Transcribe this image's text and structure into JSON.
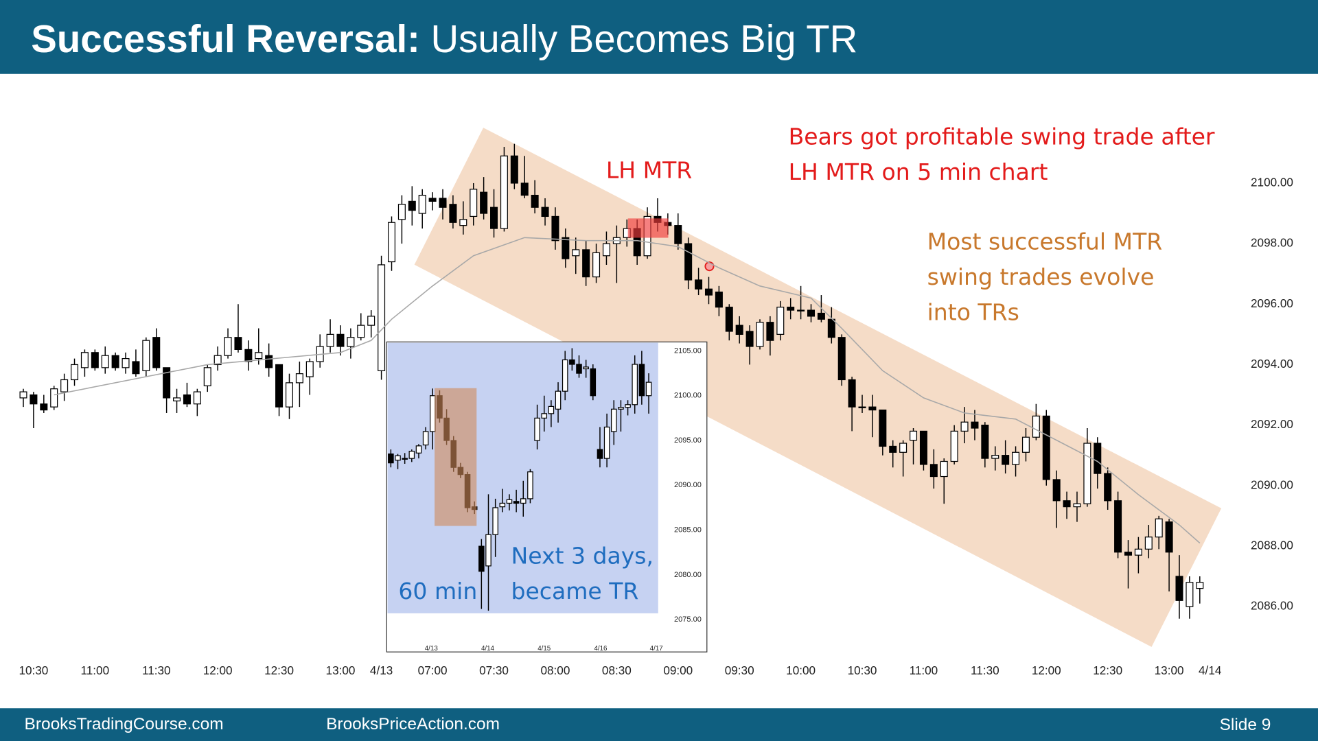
{
  "slide": {
    "title_bold": "Successful Reversal:",
    "title_rest": "Usually Becomes Big TR",
    "footer_left": "BrooksTradingCourse.com",
    "footer_mid": "BrooksPriceAction.com",
    "footer_right": "Slide 9"
  },
  "chart_data": [
    {
      "type": "candlestick",
      "up_color": "#ffffff",
      "down_color": "#000000",
      "xlim": [
        -1,
        117.5
      ],
      "ylim": [
        2084.4,
        2103.3
      ],
      "yticks": [
        {
          "value": 2086,
          "label": "2086.00"
        },
        {
          "value": 2088,
          "label": "2088.00"
        },
        {
          "value": 2090,
          "label": "2090.00"
        },
        {
          "value": 2092,
          "label": "2092.00"
        },
        {
          "value": 2094,
          "label": "2094.00"
        },
        {
          "value": 2096,
          "label": "2096.00"
        },
        {
          "value": 2098,
          "label": "2098.00"
        },
        {
          "value": 2100,
          "label": "2100.00"
        }
      ],
      "xticks": [
        {
          "value": 1,
          "label": "10:30"
        },
        {
          "value": 7,
          "label": "11:00"
        },
        {
          "value": 13,
          "label": "11:30"
        },
        {
          "value": 19,
          "label": "12:00"
        },
        {
          "value": 25,
          "label": "12:30"
        },
        {
          "value": 31,
          "label": "13:00"
        },
        {
          "value": 35,
          "label": "4/13"
        },
        {
          "value": 40,
          "label": "07:00"
        },
        {
          "value": 46,
          "label": "07:30"
        },
        {
          "value": 52,
          "label": "08:00"
        },
        {
          "value": 58,
          "label": "08:30"
        },
        {
          "value": 64,
          "label": "09:00"
        },
        {
          "value": 70,
          "label": "09:30"
        },
        {
          "value": 76,
          "label": "10:00"
        },
        {
          "value": 82,
          "label": "10:30"
        },
        {
          "value": 88,
          "label": "11:00"
        },
        {
          "value": 94,
          "label": "11:30"
        },
        {
          "value": 100,
          "label": "12:00"
        },
        {
          "value": 106,
          "label": "12:30"
        },
        {
          "value": 112,
          "label": "13:00"
        },
        {
          "value": 116,
          "label": "4/14"
        }
      ],
      "ohlc": [
        [
          2092.9,
          2093.2,
          2092.6,
          2093.1
        ],
        [
          2093.0,
          2093.1,
          2091.9,
          2092.7
        ],
        [
          2092.7,
          2093.0,
          2092.4,
          2092.5
        ],
        [
          2092.6,
          2093.3,
          2092.5,
          2093.2
        ],
        [
          2093.1,
          2093.7,
          2092.8,
          2093.5
        ],
        [
          2093.5,
          2094.2,
          2093.3,
          2094.0
        ],
        [
          2093.9,
          2094.5,
          2093.6,
          2094.4
        ],
        [
          2094.4,
          2094.5,
          2093.8,
          2093.9
        ],
        [
          2093.9,
          2094.6,
          2093.7,
          2094.3
        ],
        [
          2094.3,
          2094.4,
          2093.8,
          2093.9
        ],
        [
          2093.9,
          2094.4,
          2093.7,
          2094.2
        ],
        [
          2094.1,
          2094.5,
          2093.6,
          2093.7
        ],
        [
          2093.8,
          2094.9,
          2093.6,
          2094.8
        ],
        [
          2094.9,
          2095.2,
          2093.8,
          2093.9
        ],
        [
          2093.9,
          2093.9,
          2092.4,
          2092.9
        ],
        [
          2092.8,
          2093.2,
          2092.4,
          2092.9
        ],
        [
          2093.0,
          2093.4,
          2092.6,
          2092.7
        ],
        [
          2092.7,
          2093.2,
          2092.3,
          2093.1
        ],
        [
          2093.3,
          2094.0,
          2093.1,
          2093.9
        ],
        [
          2094.0,
          2094.6,
          2093.8,
          2094.3
        ],
        [
          2094.3,
          2095.2,
          2094.2,
          2094.9
        ],
        [
          2094.9,
          2096.0,
          2094.4,
          2094.5
        ],
        [
          2094.5,
          2094.8,
          2093.8,
          2094.1
        ],
        [
          2094.2,
          2095.2,
          2094.0,
          2094.4
        ],
        [
          2094.3,
          2094.7,
          2093.6,
          2093.9
        ],
        [
          2094.0,
          2094.0,
          2092.3,
          2092.6
        ],
        [
          2092.6,
          2093.7,
          2092.2,
          2093.4
        ],
        [
          2093.4,
          2094.1,
          2092.6,
          2093.7
        ],
        [
          2093.6,
          2094.2,
          2093.0,
          2094.1
        ],
        [
          2094.1,
          2095.0,
          2093.9,
          2094.6
        ],
        [
          2094.6,
          2095.5,
          2094.4,
          2095.0
        ],
        [
          2095.0,
          2095.3,
          2094.3,
          2094.6
        ],
        [
          2094.6,
          2095.2,
          2094.2,
          2094.9
        ],
        [
          2094.9,
          2095.7,
          2094.8,
          2095.3
        ],
        [
          2095.3,
          2095.8,
          2094.9,
          2095.6
        ],
        [
          2093.8,
          2097.6,
          2093.5,
          2097.3
        ],
        [
          2097.4,
          2098.9,
          2097.1,
          2098.7
        ],
        [
          2098.8,
          2099.6,
          2098.0,
          2099.3
        ],
        [
          2099.4,
          2099.9,
          2098.6,
          2099.1
        ],
        [
          2099.0,
          2099.8,
          2098.5,
          2099.6
        ],
        [
          2099.5,
          2099.7,
          2099.1,
          2099.4
        ],
        [
          2099.5,
          2099.8,
          2098.8,
          2099.2
        ],
        [
          2099.3,
          2099.6,
          2098.5,
          2098.7
        ],
        [
          2098.6,
          2099.4,
          2098.3,
          2098.8
        ],
        [
          2098.9,
          2100.0,
          2098.6,
          2099.8
        ],
        [
          2099.7,
          2100.2,
          2098.8,
          2099.0
        ],
        [
          2099.2,
          2099.8,
          2098.2,
          2098.5
        ],
        [
          2098.5,
          2101.2,
          2098.4,
          2100.9
        ],
        [
          2100.9,
          2101.3,
          2099.8,
          2100.0
        ],
        [
          2100.0,
          2100.9,
          2099.5,
          2099.6
        ],
        [
          2099.6,
          2100.1,
          2099.0,
          2099.2
        ],
        [
          2099.2,
          2099.5,
          2098.6,
          2098.9
        ],
        [
          2098.9,
          2099.2,
          2097.8,
          2098.1
        ],
        [
          2098.2,
          2098.5,
          2097.2,
          2097.5
        ],
        [
          2097.6,
          2098.2,
          2097.0,
          2097.8
        ],
        [
          2097.8,
          2098.1,
          2096.6,
          2096.9
        ],
        [
          2096.9,
          2098.0,
          2096.7,
          2097.7
        ],
        [
          2097.6,
          2098.4,
          2097.3,
          2098.0
        ],
        [
          2098.0,
          2098.6,
          2096.7,
          2098.2
        ],
        [
          2098.2,
          2098.8,
          2097.9,
          2098.5
        ],
        [
          2098.5,
          2098.8,
          2097.3,
          2097.6
        ],
        [
          2097.6,
          2099.2,
          2097.5,
          2098.9
        ],
        [
          2098.9,
          2099.5,
          2098.4,
          2098.7
        ],
        [
          2098.7,
          2099.0,
          2098.3,
          2098.6
        ],
        [
          2098.6,
          2099.0,
          2097.8,
          2098.0
        ],
        [
          2098.0,
          2098.2,
          2096.5,
          2096.8
        ],
        [
          2096.8,
          2097.2,
          2096.3,
          2096.5
        ],
        [
          2096.5,
          2096.9,
          2096.0,
          2096.3
        ],
        [
          2096.4,
          2096.6,
          2095.6,
          2095.9
        ],
        [
          2095.9,
          2096.0,
          2094.8,
          2095.1
        ],
        [
          2095.3,
          2095.6,
          2094.7,
          2095.0
        ],
        [
          2095.1,
          2095.3,
          2094.0,
          2094.6
        ],
        [
          2094.6,
          2095.5,
          2094.5,
          2095.4
        ],
        [
          2095.4,
          2095.6,
          2094.3,
          2094.8
        ],
        [
          2095.0,
          2096.1,
          2094.8,
          2095.9
        ],
        [
          2095.9,
          2096.2,
          2095.5,
          2095.8
        ],
        [
          2095.8,
          2096.6,
          2095.5,
          2095.8
        ],
        [
          2095.8,
          2096.0,
          2095.4,
          2095.6
        ],
        [
          2095.7,
          2096.3,
          2095.4,
          2095.5
        ],
        [
          2095.5,
          2095.9,
          2094.7,
          2094.9
        ],
        [
          2094.9,
          2095.0,
          2093.3,
          2093.5
        ],
        [
          2093.5,
          2093.6,
          2091.8,
          2092.6
        ],
        [
          2092.6,
          2093.0,
          2092.4,
          2092.6
        ],
        [
          2092.6,
          2093.0,
          2091.6,
          2092.5
        ],
        [
          2092.5,
          2092.5,
          2091.0,
          2091.3
        ],
        [
          2091.3,
          2091.5,
          2090.6,
          2091.1
        ],
        [
          2091.1,
          2091.5,
          2090.3,
          2091.4
        ],
        [
          2091.5,
          2091.9,
          2090.7,
          2091.8
        ],
        [
          2091.8,
          2091.8,
          2090.5,
          2090.7
        ],
        [
          2090.7,
          2091.2,
          2089.9,
          2090.3
        ],
        [
          2090.3,
          2090.9,
          2089.4,
          2090.8
        ],
        [
          2090.8,
          2092.0,
          2090.7,
          2091.8
        ],
        [
          2091.8,
          2092.6,
          2091.4,
          2092.1
        ],
        [
          2092.1,
          2092.5,
          2091.5,
          2091.9
        ],
        [
          2092.0,
          2092.1,
          2090.6,
          2090.9
        ],
        [
          2090.9,
          2091.3,
          2090.5,
          2091.0
        ],
        [
          2091.0,
          2091.5,
          2090.4,
          2090.7
        ],
        [
          2090.7,
          2091.3,
          2090.3,
          2091.1
        ],
        [
          2091.1,
          2091.9,
          2090.8,
          2091.6
        ],
        [
          2091.6,
          2092.7,
          2091.5,
          2092.3
        ],
        [
          2092.3,
          2092.5,
          2090.0,
          2090.2
        ],
        [
          2090.2,
          2090.5,
          2088.6,
          2089.5
        ],
        [
          2089.5,
          2089.8,
          2088.9,
          2089.3
        ],
        [
          2089.3,
          2089.8,
          2088.8,
          2089.4
        ],
        [
          2089.4,
          2091.9,
          2089.3,
          2091.4
        ],
        [
          2091.4,
          2091.6,
          2089.9,
          2090.4
        ],
        [
          2090.4,
          2090.6,
          2089.2,
          2089.5
        ],
        [
          2089.5,
          2089.8,
          2087.6,
          2087.8
        ],
        [
          2087.8,
          2088.2,
          2086.6,
          2087.7
        ],
        [
          2087.7,
          2088.3,
          2087.1,
          2087.9
        ],
        [
          2087.9,
          2088.7,
          2087.6,
          2088.3
        ],
        [
          2088.3,
          2089.0,
          2087.9,
          2088.9
        ],
        [
          2088.8,
          2088.9,
          2086.5,
          2087.8
        ],
        [
          2087.0,
          2087.7,
          2085.6,
          2086.2
        ],
        [
          2086.0,
          2087.0,
          2085.6,
          2086.8
        ],
        [
          2086.6,
          2087.0,
          2086.1,
          2086.8
        ]
      ],
      "ma": {
        "color": "#a8a8a8",
        "x": [
          3,
          18,
          31,
          34,
          36,
          40,
          44,
          49,
          55,
          60,
          64,
          68,
          72,
          77,
          80,
          84,
          88,
          92,
          97,
          101,
          105,
          109,
          113,
          115
        ],
        "values": [
          2093.0,
          2094.0,
          2094.4,
          2094.8,
          2095.5,
          2096.6,
          2097.6,
          2098.2,
          2098.1,
          2098.1,
          2097.9,
          2097.2,
          2096.6,
          2096.2,
          2095.2,
          2093.8,
          2092.9,
          2092.4,
          2092.2,
          2091.5,
          2090.8,
          2089.7,
          2088.7,
          2088.1
        ]
      },
      "annotations": [
        {
          "lines": [
            "LH MTR"
          ],
          "color": "#e31b1b"
        },
        {
          "lines": [
            "Bears got profitable swing trade after",
            "LH MTR on 5 min chart"
          ],
          "color": "#e31b1b"
        },
        {
          "lines": [
            "Most successful MTR",
            "swing trades evolve",
            "into TRs"
          ],
          "color": "#c8782c"
        }
      ]
    },
    {
      "type": "candlestick",
      "up_color": "#ffffff",
      "down_color": "#000000",
      "xlim": [
        -0.6,
        39.8
      ],
      "ylim": [
        2071.4,
        2106.0
      ],
      "yticks": [
        {
          "value": 2075,
          "label": "2075.00"
        },
        {
          "value": 2080,
          "label": "2080.00"
        },
        {
          "value": 2085,
          "label": "2085.00"
        },
        {
          "value": 2090,
          "label": "2090.00"
        },
        {
          "value": 2095,
          "label": "2095.00"
        },
        {
          "value": 2100,
          "label": "2100.00"
        },
        {
          "value": 2105,
          "label": "2105.00"
        }
      ],
      "xticks": [
        {
          "value": 5.8,
          "label": "4/13"
        },
        {
          "value": 13.9,
          "label": "4/14"
        },
        {
          "value": 22.0,
          "label": "4/15"
        },
        {
          "value": 30.1,
          "label": "4/16"
        },
        {
          "value": 38.1,
          "label": "4/17"
        }
      ],
      "ohlc": [
        [
          2093.5,
          2094.0,
          2092.0,
          2092.5
        ],
        [
          2092.8,
          2093.5,
          2091.8,
          2093.3
        ],
        [
          2093.0,
          2093.6,
          2092.4,
          2093.0
        ],
        [
          2093.0,
          2094.0,
          2092.6,
          2093.8
        ],
        [
          2093.6,
          2094.6,
          2093.0,
          2094.4
        ],
        [
          2094.5,
          2096.5,
          2094.0,
          2096.0
        ],
        [
          2096.0,
          2100.8,
          2094.0,
          2100.0
        ],
        [
          2100.0,
          2100.6,
          2097.0,
          2097.5
        ],
        [
          2097.5,
          2098.5,
          2094.5,
          2095.0
        ],
        [
          2095.0,
          2095.5,
          2091.5,
          2092.0
        ],
        [
          2092.0,
          2092.5,
          2090.8,
          2091.2
        ],
        [
          2091.2,
          2091.5,
          2087.0,
          2087.5
        ],
        [
          2087.6,
          2088.2,
          2086.8,
          2087.3
        ],
        [
          2083.2,
          2084.0,
          2076.2,
          2080.4
        ],
        [
          2081.0,
          2089.0,
          2076.0,
          2084.5
        ],
        [
          2084.5,
          2088.5,
          2082.0,
          2087.5
        ],
        [
          2087.6,
          2089.6,
          2087.0,
          2088.0
        ],
        [
          2088.0,
          2089.0,
          2087.2,
          2088.4
        ],
        [
          2088.2,
          2089.5,
          2087.0,
          2088.0
        ],
        [
          2088.0,
          2090.5,
          2086.5,
          2088.5
        ],
        [
          2088.5,
          2091.8,
          2088.0,
          2091.5
        ],
        [
          2095.0,
          2099.0,
          2094.0,
          2097.5
        ],
        [
          2097.5,
          2100.0,
          2096.0,
          2098.0
        ],
        [
          2098.0,
          2099.5,
          2096.5,
          2098.8
        ],
        [
          2098.5,
          2101.5,
          2097.0,
          2100.5
        ],
        [
          2100.5,
          2105.0,
          2099.5,
          2104.0
        ],
        [
          2104.0,
          2105.3,
          2102.8,
          2103.5
        ],
        [
          2103.5,
          2104.5,
          2102.0,
          2102.5
        ],
        [
          2103.0,
          2104.0,
          2102.0,
          2103.2
        ],
        [
          2103.0,
          2103.5,
          2099.5,
          2100.0
        ],
        [
          2094.0,
          2096.5,
          2092.0,
          2093.0
        ],
        [
          2093.0,
          2098.0,
          2092.0,
          2096.5
        ],
        [
          2096.0,
          2099.5,
          2094.5,
          2098.5
        ],
        [
          2098.5,
          2099.5,
          2096.0,
          2098.7
        ],
        [
          2098.7,
          2099.5,
          2097.8,
          2099.0
        ],
        [
          2099.0,
          2104.5,
          2098.0,
          2103.5
        ],
        [
          2103.5,
          2105.0,
          2099.0,
          2100.0
        ],
        [
          2100.0,
          2102.5,
          2098.0,
          2101.5
        ]
      ],
      "annotations": [
        {
          "lines": [
            "60 min"
          ],
          "color": "#1f6dbf"
        },
        {
          "lines": [
            "Next 3 days,",
            "became TR"
          ],
          "color": "#1f6dbf"
        }
      ]
    }
  ]
}
